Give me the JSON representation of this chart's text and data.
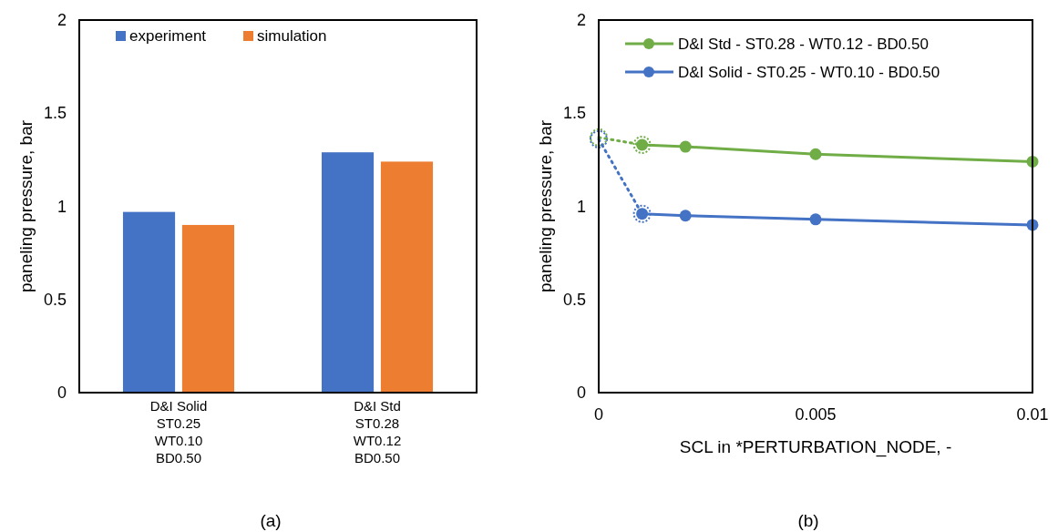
{
  "chart_data": [
    {
      "type": "bar",
      "ylabel": "paneling pressure, bar",
      "categories": [
        "D&I Solid\nST0.25\nWT0.10\nBD0.50",
        "D&I Std\nST0.28\nWT0.12\nBD0.50"
      ],
      "series": [
        {
          "name": "experiment",
          "color": "#4472c4",
          "values": [
            0.97,
            1.29
          ]
        },
        {
          "name": "simulation",
          "color": "#ed7d31",
          "values": [
            0.9,
            1.24
          ]
        }
      ],
      "ylim": [
        0,
        2
      ],
      "yticks": [
        0,
        0.5,
        1,
        1.5,
        2
      ],
      "legend": "top",
      "annotations": [
        "(a)"
      ]
    },
    {
      "type": "line",
      "xlabel": "SCL in *PERTURBATION_NODE, -",
      "ylabel": "paneling pressure, bar",
      "series": [
        {
          "name": "D&I Std - ST0.28 - WT0.12 - BD0.50",
          "color": "#70ad47",
          "x": [
            0.001,
            0.002,
            0.005,
            0.01
          ],
          "values": [
            1.33,
            1.32,
            1.28,
            1.24
          ]
        },
        {
          "name": "D&I Solid - ST0.25 - WT0.10 - BD0.50",
          "color": "#4472c4",
          "x": [
            0.001,
            0.002,
            0.005,
            0.01
          ],
          "values": [
            0.96,
            0.95,
            0.93,
            0.9
          ]
        },
        {
          "color": "#70ad47",
          "x": [
            0,
            0.001
          ],
          "values": [
            1.37,
            1.33
          ],
          "line_style": "dotted"
        },
        {
          "color": "#4472c4",
          "x": [
            0,
            0.001
          ],
          "values": [
            1.36,
            0.96
          ],
          "line_style": "dotted"
        }
      ],
      "xlim": [
        0,
        0.01
      ],
      "xticks": [
        0,
        0.005,
        0.01
      ],
      "ylim": [
        0,
        2
      ],
      "yticks": [
        0,
        0.5,
        1,
        1.5,
        2
      ],
      "marker": "circle",
      "line_style": "solid",
      "legend": "top",
      "annotations": [
        "(b)"
      ]
    }
  ]
}
